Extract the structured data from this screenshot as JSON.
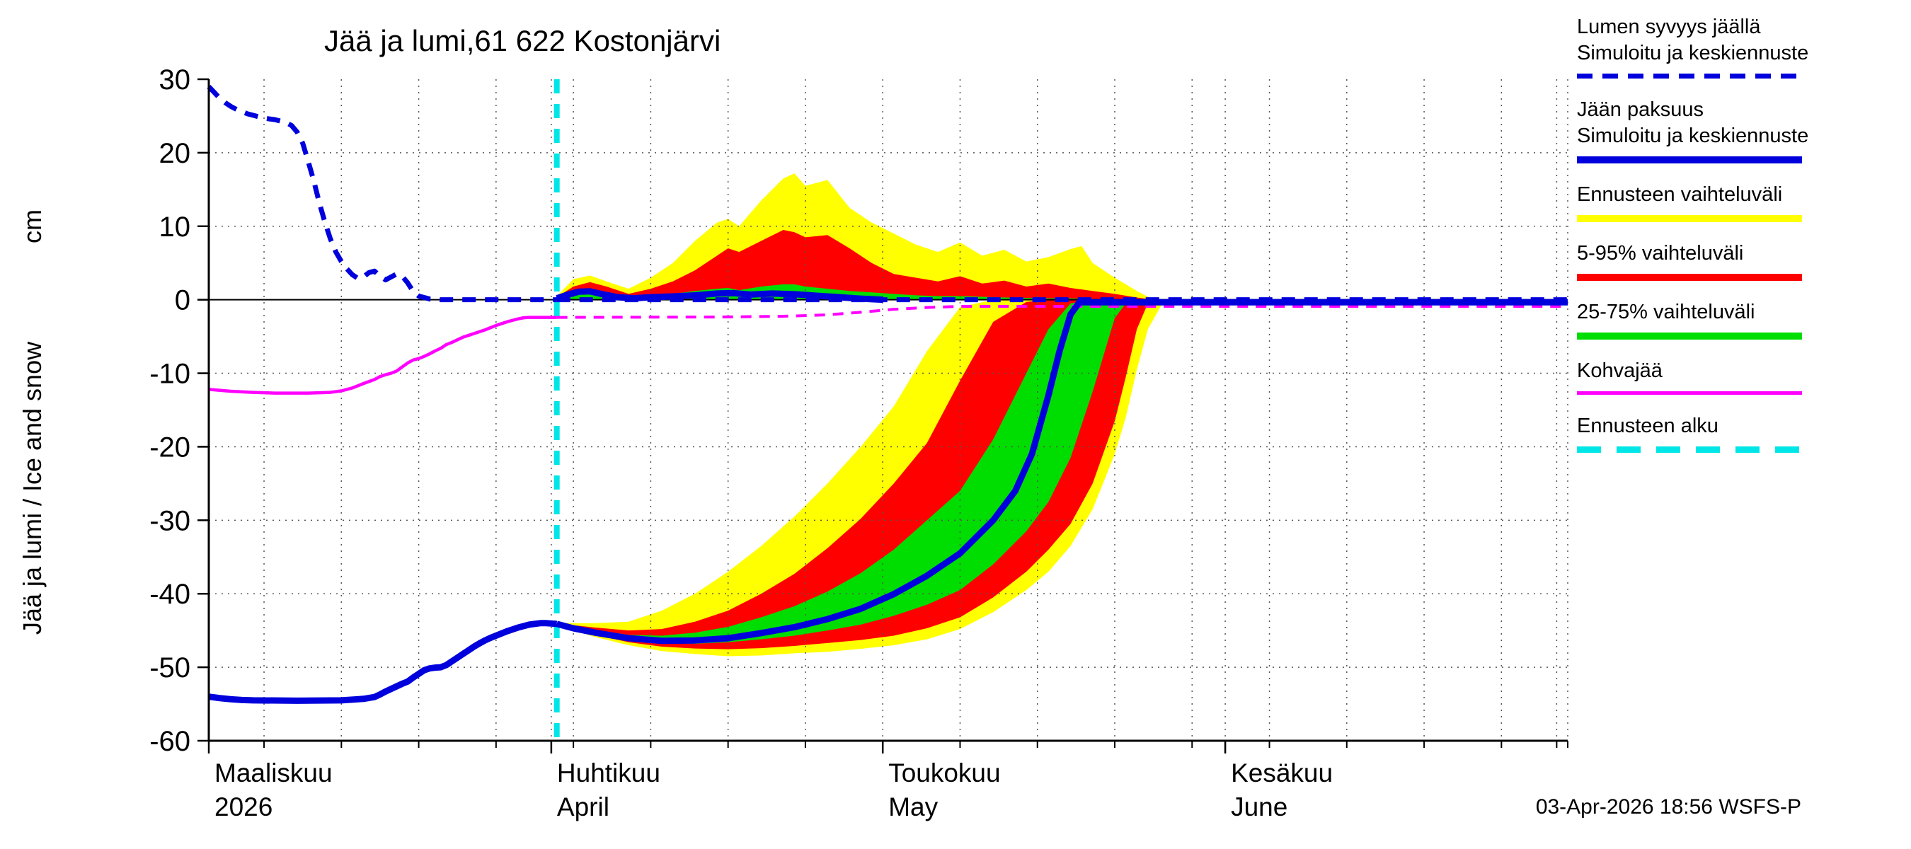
{
  "title": "Jää ja lumi,61 622 Kostonjärvi",
  "timestamp": "03-Apr-2026 18:56 WSFS-P",
  "colors": {
    "blue": "#0000dd",
    "yellow": "#ffff00",
    "red": "#ff0000",
    "green": "#00dd00",
    "magenta": "#ff00ff",
    "cyan": "#00e6e6",
    "grid": "#555555",
    "axis": "#000000"
  },
  "y_axis": {
    "label": "Jää ja lumi / Ice and snow",
    "unit": "cm",
    "min": -60,
    "max": 30,
    "step": 10
  },
  "x_axis": {
    "domain_days": [
      0,
      123
    ],
    "minor_start_day": 5,
    "minor_step_days": 7,
    "month_ticks": [
      {
        "day": 0,
        "label_fi": "Maaliskuu",
        "label_en": "2026"
      },
      {
        "day": 31,
        "label_fi": "Huhtikuu",
        "label_en": "April"
      },
      {
        "day": 61,
        "label_fi": "Toukokuu",
        "label_en": "May"
      },
      {
        "day": 92,
        "label_fi": "Kesäkuu",
        "label_en": "June"
      }
    ],
    "extra_boundaries": [
      122
    ]
  },
  "legend": {
    "entries": [
      {
        "line1": "Lumen syvyys jäällä",
        "line2": "Simuloitu ja keskiennuste",
        "style": "blue-dashed"
      },
      {
        "line1": "Jään paksuus",
        "line2": "Simuloitu ja keskiennuste",
        "style": "blue-solid"
      },
      {
        "line1": "Ennusteen vaihteluväli",
        "style": "yellow"
      },
      {
        "line1": "5-95% vaihteluväli",
        "style": "red"
      },
      {
        "line1": "25-75% vaihteluväli",
        "style": "green"
      },
      {
        "line1": "Kohvajää",
        "style": "magenta"
      },
      {
        "line1": "Ennusteen alku",
        "style": "cyan-dashed"
      }
    ]
  },
  "chart_data": {
    "type": "line",
    "unit": "cm",
    "forecast_start_day": 31.5,
    "ylim": [
      -60,
      30
    ],
    "series": [
      {
        "name": "kohvajaa_history",
        "legend": "Kohvajää",
        "style": "magenta-solid",
        "points": [
          [
            0,
            -12.2
          ],
          [
            2,
            -12.45
          ],
          [
            4,
            -12.6
          ],
          [
            6,
            -12.7
          ],
          [
            9,
            -12.7
          ],
          [
            11,
            -12.6
          ],
          [
            12,
            -12.4
          ],
          [
            13,
            -12
          ],
          [
            14,
            -11.4
          ],
          [
            15,
            -10.85
          ],
          [
            15.5,
            -10.45
          ],
          [
            16,
            -10.2
          ],
          [
            16.5,
            -10
          ],
          [
            17,
            -9.7
          ],
          [
            17.5,
            -9.15
          ],
          [
            18,
            -8.6
          ],
          [
            18.5,
            -8.2
          ],
          [
            19,
            -8
          ],
          [
            19.5,
            -7.7
          ],
          [
            20,
            -7.35
          ],
          [
            20.5,
            -6.95
          ],
          [
            21,
            -6.6
          ],
          [
            21.5,
            -6.1
          ],
          [
            22,
            -5.8
          ],
          [
            22.5,
            -5.45
          ],
          [
            23,
            -5.1
          ],
          [
            23.5,
            -4.85
          ],
          [
            24,
            -4.6
          ],
          [
            24.5,
            -4.35
          ],
          [
            25,
            -4.1
          ],
          [
            25.5,
            -3.8
          ],
          [
            26,
            -3.5
          ],
          [
            26.5,
            -3.25
          ],
          [
            27,
            -3
          ],
          [
            27.5,
            -2.8
          ],
          [
            28,
            -2.6
          ],
          [
            28.5,
            -2.45
          ],
          [
            29,
            -2.4
          ],
          [
            31.5,
            -2.4
          ]
        ]
      },
      {
        "name": "kohvajaa_forecast",
        "style": "magenta-dashed",
        "points": [
          [
            31.5,
            -2.4
          ],
          [
            46,
            -2.35
          ],
          [
            52,
            -2.25
          ],
          [
            56,
            -2.05
          ],
          [
            59,
            -1.7
          ],
          [
            62,
            -1.3
          ],
          [
            65,
            -1.05
          ],
          [
            68,
            -0.9
          ],
          [
            123,
            -0.9
          ]
        ]
      },
      {
        "name": "snow_depth_forecast_median",
        "style": "blue-solid",
        "points": [
          [
            31.5,
            0.2
          ],
          [
            32.5,
            0.7
          ],
          [
            33.5,
            1.1
          ],
          [
            34.5,
            1.15
          ],
          [
            35.5,
            0.8
          ],
          [
            37,
            0.35
          ],
          [
            38.5,
            0.2
          ],
          [
            40,
            0.35
          ],
          [
            42,
            0.45
          ],
          [
            44,
            0.6
          ],
          [
            46,
            0.85
          ],
          [
            47.5,
            0.9
          ],
          [
            49,
            0.7
          ],
          [
            51,
            0.85
          ],
          [
            53,
            0.75
          ],
          [
            55,
            0.55
          ],
          [
            57,
            0.35
          ],
          [
            59,
            0.15
          ],
          [
            61,
            0
          ]
        ]
      },
      {
        "name": "ice_thickness_history",
        "legend": "Jään paksuus",
        "style": "blue-solid",
        "points": [
          [
            0,
            -54
          ],
          [
            1,
            -54.2
          ],
          [
            2,
            -54.35
          ],
          [
            3,
            -54.45
          ],
          [
            4,
            -54.5
          ],
          [
            8,
            -54.55
          ],
          [
            12,
            -54.5
          ],
          [
            14,
            -54.3
          ],
          [
            15,
            -54.05
          ],
          [
            15.5,
            -53.7
          ],
          [
            16,
            -53.3
          ],
          [
            16.5,
            -52.95
          ],
          [
            17,
            -52.6
          ],
          [
            17.5,
            -52.25
          ],
          [
            18,
            -51.95
          ],
          [
            18.5,
            -51.4
          ],
          [
            19,
            -50.9
          ],
          [
            19.5,
            -50.4
          ],
          [
            20,
            -50.15
          ],
          [
            20.5,
            -50.05
          ],
          [
            21,
            -50
          ],
          [
            21.5,
            -49.7
          ],
          [
            22,
            -49.2
          ],
          [
            22.5,
            -48.7
          ],
          [
            23,
            -48.2
          ],
          [
            23.5,
            -47.7
          ],
          [
            24,
            -47.2
          ],
          [
            24.5,
            -46.75
          ],
          [
            25,
            -46.35
          ],
          [
            25.5,
            -46
          ],
          [
            26,
            -45.7
          ],
          [
            26.5,
            -45.4
          ],
          [
            27,
            -45.1
          ],
          [
            27.5,
            -44.85
          ],
          [
            28,
            -44.6
          ],
          [
            28.5,
            -44.4
          ],
          [
            29,
            -44.2
          ],
          [
            29.5,
            -44.1
          ],
          [
            30,
            -44
          ],
          [
            30.5,
            -44
          ],
          [
            31.5,
            -44.1
          ]
        ]
      },
      {
        "name": "ice_thickness_forecast_median",
        "style": "blue-solid",
        "points": [
          [
            31.5,
            -44.1
          ],
          [
            33,
            -44.7
          ],
          [
            35,
            -45.3
          ],
          [
            38,
            -46.05
          ],
          [
            41,
            -46.4
          ],
          [
            44,
            -46.35
          ],
          [
            47,
            -46.05
          ],
          [
            50,
            -45.35
          ],
          [
            53,
            -44.55
          ],
          [
            56,
            -43.45
          ],
          [
            59,
            -42.05
          ],
          [
            62,
            -40.05
          ],
          [
            65,
            -37.55
          ],
          [
            68,
            -34.5
          ],
          [
            71,
            -30
          ],
          [
            73,
            -26
          ],
          [
            74.5,
            -21
          ],
          [
            76,
            -13
          ],
          [
            77,
            -7
          ],
          [
            78,
            -2
          ],
          [
            78.8,
            -0.35
          ],
          [
            123,
            -0.35
          ]
        ]
      },
      {
        "name": "snow_depth_history",
        "legend": "Lumen syvyys jäällä",
        "style": "blue-dashed",
        "points": [
          [
            0,
            29
          ],
          [
            0.5,
            28.2
          ],
          [
            1,
            27.4
          ],
          [
            1.5,
            26.8
          ],
          [
            2,
            26.3
          ],
          [
            2.5,
            25.9
          ],
          [
            3,
            25.6
          ],
          [
            3.5,
            25.3
          ],
          [
            4,
            25.1
          ],
          [
            4.5,
            24.9
          ],
          [
            5,
            24.7
          ],
          [
            5.5,
            24.6
          ],
          [
            6,
            24.5
          ],
          [
            6.5,
            24.3
          ],
          [
            7,
            24.1
          ],
          [
            7.5,
            23.7
          ],
          [
            8,
            22.8
          ],
          [
            8.5,
            21.3
          ],
          [
            9,
            18.8
          ],
          [
            9.5,
            16.2
          ],
          [
            10,
            13.2
          ],
          [
            10.5,
            10.6
          ],
          [
            11,
            8.3
          ],
          [
            11.5,
            6.5
          ],
          [
            12,
            5.2
          ],
          [
            12.5,
            4.2
          ],
          [
            13,
            3.4
          ],
          [
            13.5,
            2.9
          ],
          [
            14,
            3.1
          ],
          [
            14.5,
            3.7
          ],
          [
            15,
            3.9
          ],
          [
            15.5,
            3.2
          ],
          [
            16,
            2.7
          ],
          [
            16.5,
            3.1
          ],
          [
            17,
            3.5
          ],
          [
            17.5,
            3.2
          ],
          [
            18,
            2.3
          ],
          [
            18.5,
            1.1
          ],
          [
            19,
            0.5
          ],
          [
            19.5,
            0.3
          ],
          [
            20,
            0.1
          ],
          [
            21,
            0
          ],
          [
            31.5,
            0
          ]
        ]
      },
      {
        "name": "snow_depth_forecast_flat",
        "style": "blue-dashed",
        "points": [
          [
            31.5,
            0
          ],
          [
            123,
            0
          ]
        ]
      }
    ],
    "bands": {
      "ice_forecast": {
        "days": [
          31.5,
          35,
          38,
          41,
          44,
          47,
          50,
          53,
          56,
          59,
          62,
          65,
          68,
          71,
          74,
          76,
          78,
          80,
          82,
          83,
          84,
          85,
          86.5
        ],
        "yellow_lo": [
          -44.3,
          -45.9,
          -47.0,
          -47.8,
          -48.2,
          -48.5,
          -48.4,
          -48.1,
          -47.9,
          -47.5,
          -47.0,
          -46.2,
          -44.8,
          -42.5,
          -39.5,
          -37.0,
          -33.5,
          -28.5,
          -21.0,
          -16.0,
          -9.5,
          -4.0,
          0
        ],
        "red_lo": [
          -44.25,
          -45.6,
          -46.6,
          -47.2,
          -47.45,
          -47.55,
          -47.4,
          -47.1,
          -46.7,
          -46.3,
          -45.7,
          -44.7,
          -43.2,
          -40.5,
          -37.0,
          -34.0,
          -30.5,
          -25.0,
          -16.5,
          -10.5,
          -4.0,
          -0.5,
          0
        ],
        "green_lo": [
          -44.2,
          -45.4,
          -46.3,
          -46.7,
          -46.8,
          -46.6,
          -46.2,
          -45.7,
          -45.0,
          -44.2,
          -43.0,
          -41.5,
          -39.5,
          -36.0,
          -31.5,
          -27.5,
          -21.5,
          -12.5,
          -2.5,
          -0.5,
          0,
          0,
          0
        ],
        "green_hi": [
          -44.1,
          -44.9,
          -45.6,
          -45.7,
          -45.3,
          -44.5,
          -43.2,
          -41.7,
          -39.7,
          -37.2,
          -34.0,
          -30.0,
          -26.0,
          -19.0,
          -10.0,
          -4.0,
          -0.5,
          0,
          0,
          0,
          0,
          0,
          0
        ],
        "red_hi": [
          -44.05,
          -44.6,
          -45.0,
          -44.8,
          -43.8,
          -42.3,
          -40.0,
          -37.3,
          -33.8,
          -29.8,
          -25.0,
          -19.5,
          -11.0,
          -3.0,
          -0.3,
          0,
          0,
          0,
          0,
          0,
          0,
          0,
          0
        ],
        "yellow_hi": [
          -44.0,
          -44.0,
          -43.8,
          -42.3,
          -40.0,
          -37.0,
          -33.5,
          -29.5,
          -25.0,
          -20.0,
          -14.5,
          -7.0,
          -1.0,
          0,
          0,
          0,
          0,
          0,
          0,
          0,
          0,
          0,
          0
        ]
      },
      "snow_forecast": {
        "base": 0,
        "days": [
          31.5,
          33,
          34.5,
          36,
          38,
          40,
          42,
          44,
          46,
          47,
          48,
          50,
          52,
          53,
          54,
          56,
          58,
          60,
          62,
          64,
          66,
          68,
          70,
          72,
          74,
          76,
          78,
          79,
          80,
          82,
          84,
          85.5
        ],
        "yellow_hi": [
          0.5,
          2.8,
          3.3,
          2.5,
          1.5,
          3,
          5,
          8,
          10.5,
          11,
          10,
          13.5,
          16.5,
          17.2,
          15.5,
          16.3,
          12.5,
          10.5,
          9,
          7.5,
          6.5,
          7.8,
          6,
          6.8,
          5.2,
          5.8,
          6.9,
          7.3,
          5,
          3,
          1.2,
          0
        ],
        "red_hi": [
          0.35,
          1.8,
          2.4,
          1.8,
          0.8,
          1.5,
          2.5,
          4,
          6,
          7,
          6.5,
          8,
          9.5,
          9.2,
          8.5,
          8.8,
          7,
          5,
          3.5,
          3,
          2.5,
          3.2,
          2.2,
          2.6,
          1.8,
          2.2,
          1.6,
          1.4,
          1.2,
          0.8,
          0.3,
          0
        ],
        "green_hi": [
          0.25,
          1.2,
          1.5,
          0.8,
          0.3,
          0.5,
          0.8,
          1.2,
          1.5,
          1.6,
          1.3,
          1.8,
          2.1,
          2.1,
          1.8,
          1.5,
          1.2,
          1,
          0.8,
          0.6,
          0.5,
          0.5,
          0.4,
          0.3,
          0.25,
          0.2,
          0.2,
          0.15,
          0.1,
          0,
          0,
          0
        ]
      }
    }
  }
}
